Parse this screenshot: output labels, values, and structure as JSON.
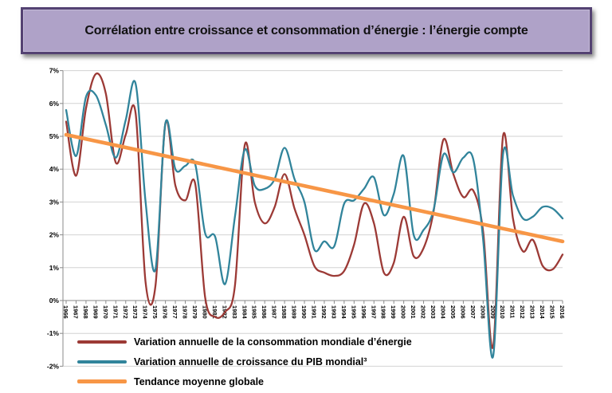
{
  "banner": {
    "title": "Corrélation entre croissance et consommation d’énergie : l’énergie compte",
    "fill": "#afa2c8",
    "border": "#544272"
  },
  "chart_data": {
    "type": "line",
    "title": "",
    "xlabel": "",
    "ylabel": "",
    "ylim": [
      -2,
      7
    ],
    "y_tick_step": 1,
    "y_tick_labels": [
      "7%",
      "6%",
      "5%",
      "4%",
      "3%",
      "2%",
      "1%",
      "0%",
      "-1%",
      "-2%"
    ],
    "grid": true,
    "legend_position": "bottom-left",
    "grid_color": "#d2d2d2",
    "axis_color": "#8a8a8a",
    "label_color": "#000000",
    "categories": [
      1966,
      1967,
      1968,
      1969,
      1970,
      1971,
      1972,
      1973,
      1974,
      1975,
      1976,
      1977,
      1978,
      1979,
      1980,
      1981,
      1982,
      1983,
      1984,
      1985,
      1986,
      1987,
      1988,
      1989,
      1990,
      1991,
      1992,
      1993,
      1994,
      1995,
      1996,
      1997,
      1998,
      1999,
      2000,
      2001,
      2002,
      2003,
      2004,
      2005,
      2006,
      2007,
      2008,
      2009,
      2010,
      2011,
      2012,
      2013,
      2014,
      2015,
      2016
    ],
    "series": [
      {
        "name": "Variation annuelle de la consommation mondiale d’énergie",
        "color": "#9c3a36",
        "line_style": "smooth",
        "values": [
          5.45,
          3.8,
          5.85,
          6.9,
          6.3,
          4.2,
          5.05,
          5.7,
          0.55,
          0.45,
          5.4,
          3.5,
          3.05,
          3.55,
          0.1,
          -0.5,
          -0.35,
          0.45,
          4.75,
          3.0,
          2.35,
          2.85,
          3.85,
          2.8,
          2.0,
          1.05,
          0.85,
          0.75,
          0.9,
          1.7,
          2.95,
          2.35,
          0.85,
          1.15,
          2.55,
          1.35,
          1.6,
          2.7,
          4.9,
          3.85,
          3.15,
          3.35,
          2.1,
          -1.4,
          5.0,
          2.5,
          1.5,
          1.85,
          1.05,
          0.95,
          1.4
        ]
      },
      {
        "name": "Variation annuelle de croissance du PIB mondial³",
        "color": "#31849b",
        "line_style": "smooth",
        "values": [
          5.8,
          4.4,
          6.2,
          6.25,
          5.35,
          4.35,
          5.5,
          6.6,
          3.0,
          0.95,
          5.4,
          4.0,
          4.1,
          4.15,
          2.05,
          1.95,
          0.5,
          2.55,
          4.6,
          3.5,
          3.4,
          3.7,
          4.65,
          3.7,
          3.0,
          1.55,
          1.8,
          1.65,
          2.95,
          3.05,
          3.4,
          3.75,
          2.6,
          3.25,
          4.4,
          2.0,
          2.15,
          2.75,
          4.45,
          3.9,
          4.35,
          4.3,
          1.85,
          -1.7,
          4.45,
          3.2,
          2.5,
          2.55,
          2.85,
          2.8,
          2.5
        ]
      },
      {
        "name": "Tendance moyenne globale",
        "color": "#f79646",
        "line_style": "straight-trend",
        "trend_endpoints_x": [
          1966,
          2016
        ],
        "values": [
          5.05,
          1.8
        ]
      }
    ]
  }
}
